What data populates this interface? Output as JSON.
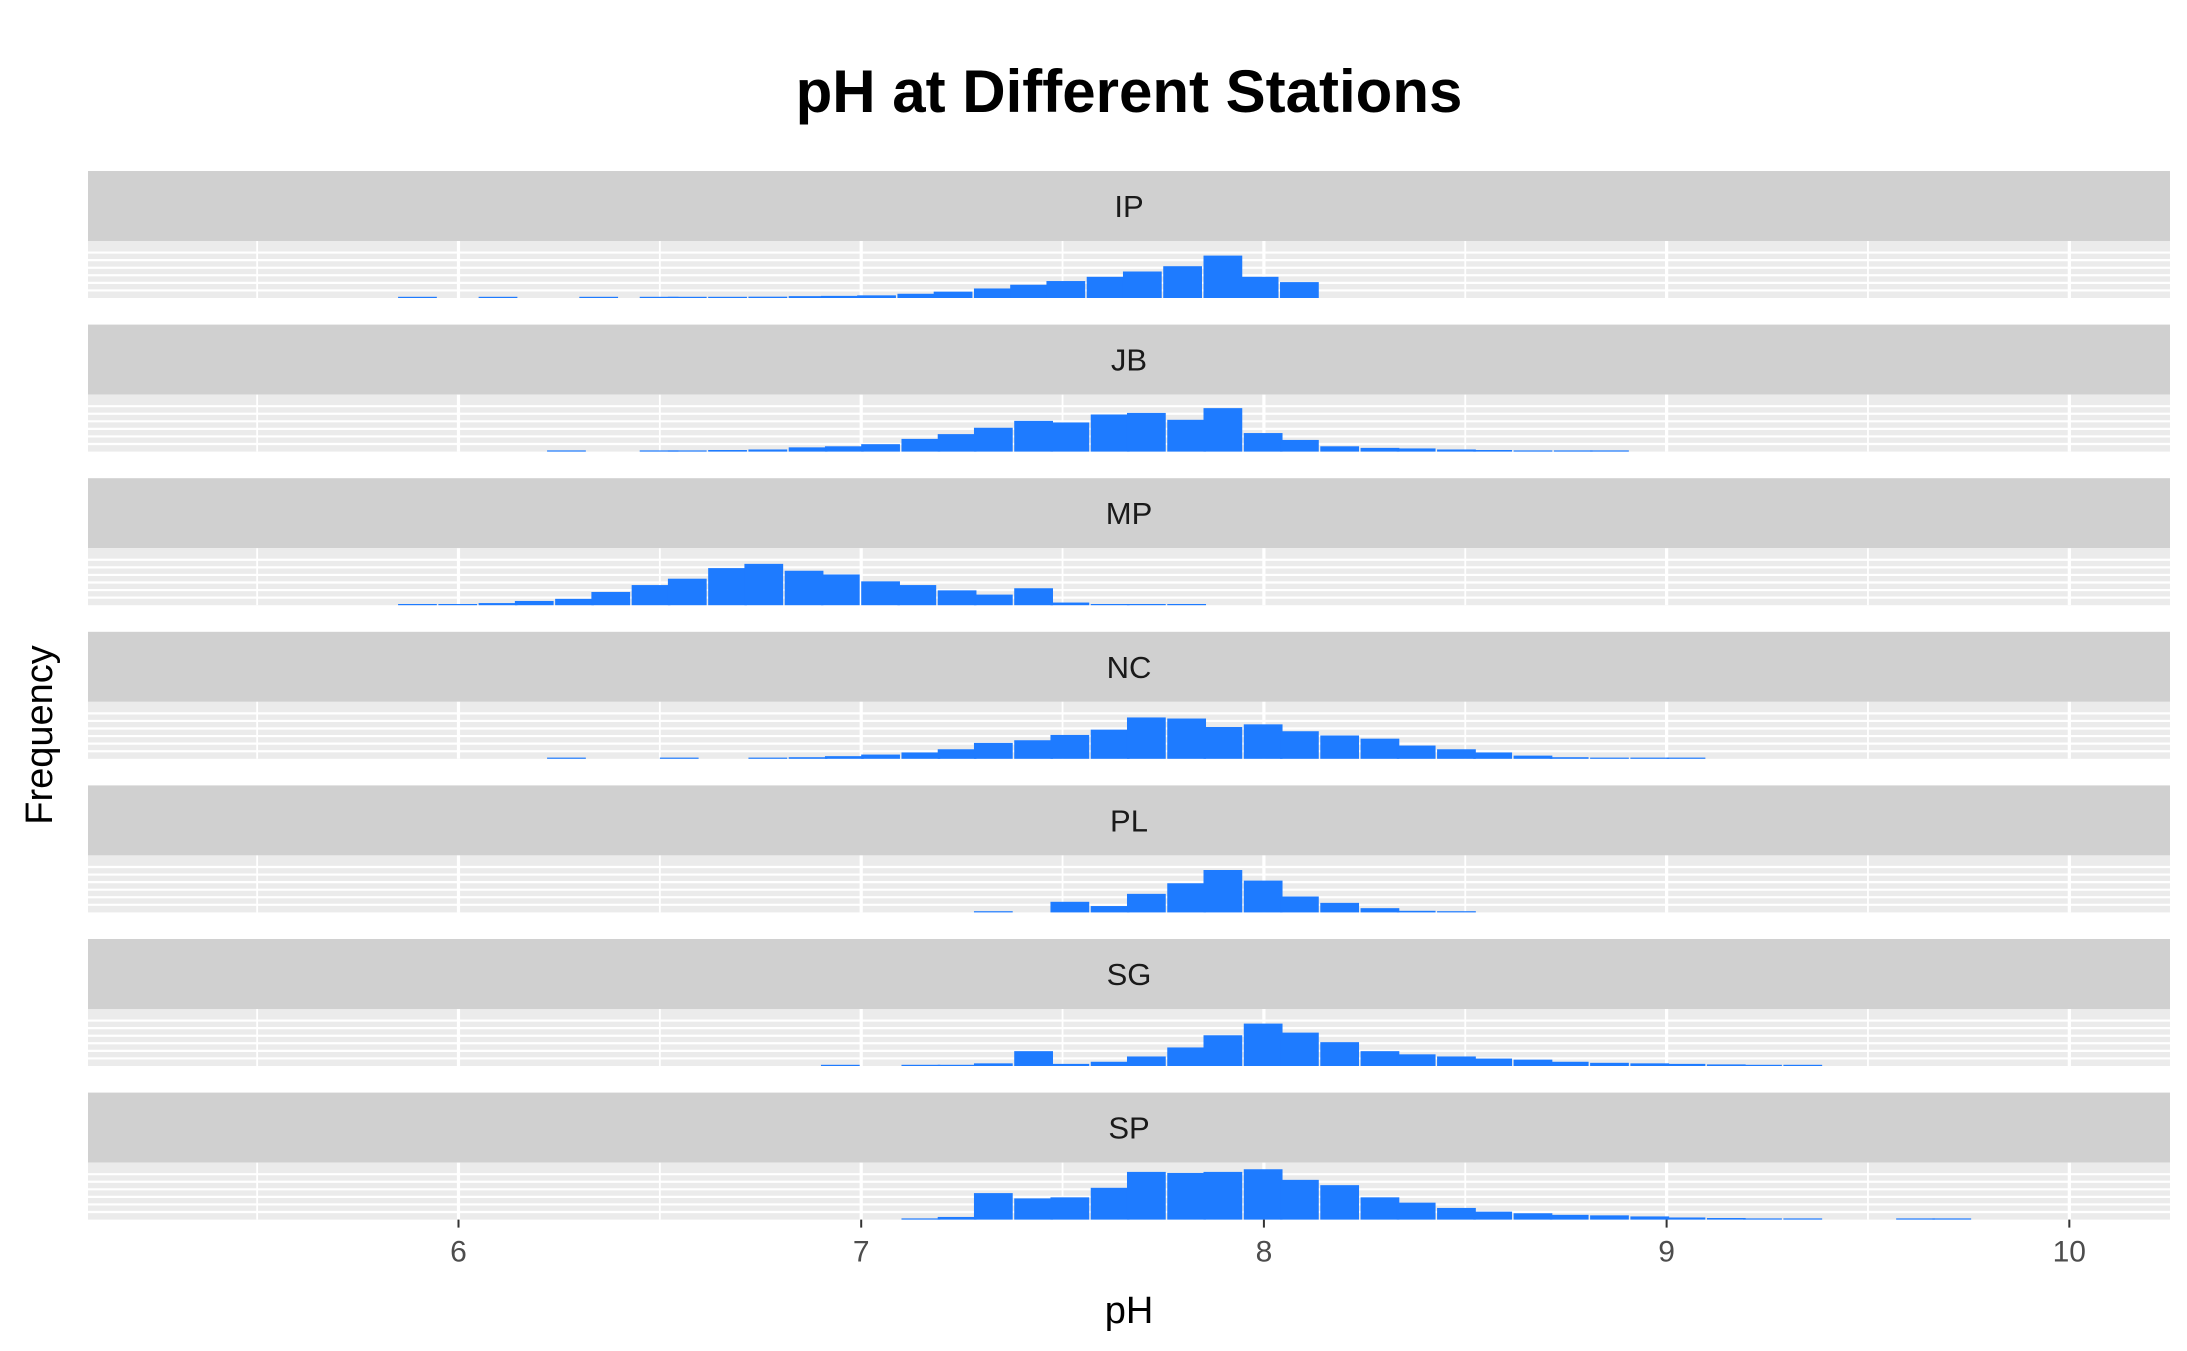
{
  "chart_data": {
    "type": "bar",
    "title": "pH at Different Stations",
    "xlabel": "pH",
    "ylabel": "Frequency",
    "xlim": [
      5.08,
      10.25
    ],
    "x_ticks": [
      6,
      7,
      8,
      9,
      10
    ],
    "bin_width": 0.095,
    "bar_color": "#1e7bff",
    "strip_color": "#d0d0d0",
    "panel_color": "#ebebeb",
    "grid": true,
    "legend": "none",
    "panels": [
      {
        "label": "IP",
        "bins": [
          [
            5.85,
            0.3
          ],
          [
            6.05,
            0.5
          ],
          [
            6.3,
            0.7
          ],
          [
            6.45,
            0.8
          ],
          [
            6.52,
            1.5
          ],
          [
            6.62,
            2
          ],
          [
            6.72,
            2.5
          ],
          [
            6.82,
            3.5
          ],
          [
            6.9,
            4
          ],
          [
            6.99,
            5
          ],
          [
            7.09,
            8
          ],
          [
            7.18,
            12
          ],
          [
            7.28,
            18
          ],
          [
            7.37,
            25
          ],
          [
            7.46,
            32
          ],
          [
            7.56,
            40
          ],
          [
            7.65,
            50
          ],
          [
            7.75,
            60
          ],
          [
            7.85,
            80
          ],
          [
            7.94,
            40
          ],
          [
            8.04,
            30
          ]
        ]
      },
      {
        "label": "JB",
        "bins": [
          [
            6.22,
            0.5
          ],
          [
            6.45,
            1
          ],
          [
            6.52,
            2
          ],
          [
            6.62,
            3
          ],
          [
            6.72,
            4
          ],
          [
            6.82,
            8
          ],
          [
            6.91,
            10
          ],
          [
            7.0,
            14
          ],
          [
            7.1,
            24
          ],
          [
            7.19,
            33
          ],
          [
            7.28,
            45
          ],
          [
            7.38,
            58
          ],
          [
            7.47,
            55
          ],
          [
            7.57,
            70
          ],
          [
            7.66,
            73
          ],
          [
            7.76,
            60
          ],
          [
            7.85,
            82
          ],
          [
            7.95,
            35
          ],
          [
            8.04,
            22
          ],
          [
            8.14,
            10
          ],
          [
            8.24,
            7
          ],
          [
            8.33,
            6
          ],
          [
            8.43,
            4
          ],
          [
            8.52,
            3
          ],
          [
            8.62,
            2
          ],
          [
            8.72,
            1
          ],
          [
            8.81,
            0.5
          ]
        ]
      },
      {
        "label": "MP",
        "bins": [
          [
            5.85,
            1
          ],
          [
            5.95,
            2
          ],
          [
            6.05,
            4
          ],
          [
            6.14,
            8
          ],
          [
            6.24,
            12
          ],
          [
            6.33,
            25
          ],
          [
            6.43,
            38
          ],
          [
            6.52,
            50
          ],
          [
            6.62,
            70
          ],
          [
            6.71,
            78
          ],
          [
            6.81,
            65
          ],
          [
            6.9,
            58
          ],
          [
            7.0,
            45
          ],
          [
            7.09,
            38
          ],
          [
            7.19,
            28
          ],
          [
            7.28,
            20
          ],
          [
            7.38,
            32
          ],
          [
            7.47,
            5
          ],
          [
            7.57,
            2
          ],
          [
            7.66,
            1
          ],
          [
            7.76,
            0.5
          ]
        ]
      },
      {
        "label": "NC",
        "bins": [
          [
            6.22,
            1
          ],
          [
            6.5,
            1
          ],
          [
            6.72,
            2
          ],
          [
            6.82,
            3
          ],
          [
            6.91,
            5
          ],
          [
            7.0,
            8
          ],
          [
            7.1,
            12
          ],
          [
            7.19,
            18
          ],
          [
            7.28,
            30
          ],
          [
            7.38,
            35
          ],
          [
            7.47,
            45
          ],
          [
            7.57,
            55
          ],
          [
            7.66,
            78
          ],
          [
            7.76,
            76
          ],
          [
            7.85,
            60
          ],
          [
            7.95,
            65
          ],
          [
            8.04,
            52
          ],
          [
            8.14,
            44
          ],
          [
            8.24,
            38
          ],
          [
            8.33,
            25
          ],
          [
            8.43,
            18
          ],
          [
            8.52,
            12
          ],
          [
            8.62,
            6
          ],
          [
            8.71,
            3
          ],
          [
            8.81,
            2
          ],
          [
            8.91,
            1
          ],
          [
            9.0,
            0.5
          ]
        ]
      },
      {
        "label": "PL",
        "bins": [
          [
            7.28,
            1
          ],
          [
            7.47,
            20
          ],
          [
            7.57,
            12
          ],
          [
            7.66,
            35
          ],
          [
            7.76,
            55
          ],
          [
            7.85,
            80
          ],
          [
            7.95,
            60
          ],
          [
            8.04,
            30
          ],
          [
            8.14,
            18
          ],
          [
            8.24,
            8
          ],
          [
            8.33,
            3
          ],
          [
            8.43,
            1
          ]
        ]
      },
      {
        "label": "SG",
        "bins": [
          [
            6.9,
            0.5
          ],
          [
            7.1,
            1
          ],
          [
            7.19,
            2
          ],
          [
            7.28,
            5
          ],
          [
            7.38,
            28
          ],
          [
            7.47,
            4
          ],
          [
            7.57,
            8
          ],
          [
            7.66,
            18
          ],
          [
            7.76,
            35
          ],
          [
            7.85,
            58
          ],
          [
            7.95,
            80
          ],
          [
            8.04,
            63
          ],
          [
            8.14,
            45
          ],
          [
            8.24,
            28
          ],
          [
            8.33,
            22
          ],
          [
            8.43,
            18
          ],
          [
            8.52,
            14
          ],
          [
            8.62,
            12
          ],
          [
            8.71,
            8
          ],
          [
            8.81,
            6
          ],
          [
            8.91,
            5
          ],
          [
            9.0,
            4
          ],
          [
            9.1,
            3
          ],
          [
            9.19,
            2
          ],
          [
            9.29,
            1
          ]
        ]
      },
      {
        "label": "SP",
        "bins": [
          [
            7.1,
            1
          ],
          [
            7.19,
            5
          ],
          [
            7.28,
            50
          ],
          [
            7.38,
            40
          ],
          [
            7.47,
            42
          ],
          [
            7.57,
            60
          ],
          [
            7.66,
            90
          ],
          [
            7.76,
            88
          ],
          [
            7.85,
            90
          ],
          [
            7.95,
            95
          ],
          [
            8.04,
            75
          ],
          [
            8.14,
            65
          ],
          [
            8.24,
            42
          ],
          [
            8.33,
            32
          ],
          [
            8.43,
            22
          ],
          [
            8.52,
            15
          ],
          [
            8.62,
            12
          ],
          [
            8.71,
            9
          ],
          [
            8.81,
            8
          ],
          [
            8.91,
            6
          ],
          [
            9.0,
            4
          ],
          [
            9.1,
            3
          ],
          [
            9.19,
            2
          ],
          [
            9.29,
            2
          ],
          [
            9.57,
            2
          ],
          [
            9.66,
            1
          ]
        ]
      }
    ],
    "ymax": 100
  }
}
